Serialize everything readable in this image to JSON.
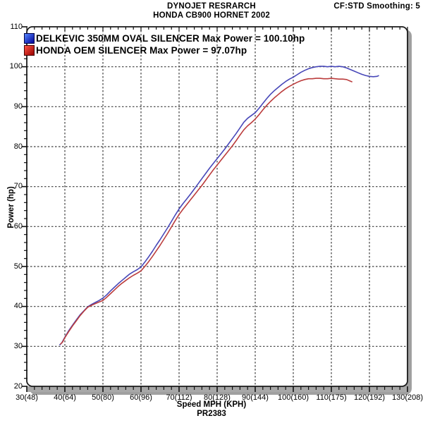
{
  "header": {
    "title_line1": "DYNOJET RESRARCH",
    "title_line2": "HONDA CB900 HORNET 2002",
    "smoothing": "CF:STD Smoothing: 5"
  },
  "legend": {
    "item1": {
      "label": "DELKEVIC 350MM OVAL SILENCER  Max Power = 100.10hp"
    },
    "item2": {
      "label": "HONDA OEM SILENCER Max Power = 97.07hp"
    }
  },
  "footer": {
    "xlabel": "Speed MPH (KPH)",
    "run_id": "PR2383"
  },
  "colors": {
    "blue_line": "#4747b8",
    "red_line": "#bb3c3c",
    "blue_swatch_light": "#5588ff",
    "blue_swatch_dark": "#000099",
    "red_swatch_light": "#ff5544",
    "red_swatch_dark": "#990000",
    "grid": "#3c3c3c",
    "frame": "#1a1a1a",
    "frame_shadow": "#a0a0a0",
    "axis_bar": "#a8a8a8"
  },
  "chart_data": {
    "type": "line",
    "title": "DYNOJET RESRARCH - HONDA CB900 HORNET 2002",
    "xlabel": "Speed MPH (KPH)",
    "ylabel": "Power (hp)",
    "xlim": [
      30,
      130
    ],
    "ylim": [
      20,
      110
    ],
    "grid": "dashed-major-both",
    "legend_position": "top-left-inside",
    "x_ticks": [
      {
        "mph": 30,
        "label": "30(48)"
      },
      {
        "mph": 40,
        "label": "40(64)"
      },
      {
        "mph": 50,
        "label": "50(80)"
      },
      {
        "mph": 60,
        "label": "60(96)"
      },
      {
        "mph": 70,
        "label": "70(112)"
      },
      {
        "mph": 80,
        "label": "80(128)"
      },
      {
        "mph": 90,
        "label": "90(144)"
      },
      {
        "mph": 100,
        "label": "100(160)"
      },
      {
        "mph": 110,
        "label": "110(175)"
      },
      {
        "mph": 120,
        "label": "120(192)"
      },
      {
        "mph": 130,
        "label": "130(208)"
      }
    ],
    "y_ticks": [
      20,
      30,
      40,
      50,
      60,
      70,
      80,
      90,
      100,
      110
    ],
    "minor_tick_step_x_mph": 2,
    "minor_tick_step_y_hp": 2,
    "series": [
      {
        "name": "DELKEVIC 350MM OVAL SILENCER",
        "max_power_hp": 100.1,
        "color": "#4747b8",
        "points": [
          [
            38.6,
            30.3
          ],
          [
            39.2,
            30.9
          ],
          [
            40,
            32.3
          ],
          [
            41,
            33.9
          ],
          [
            42,
            35.3
          ],
          [
            43,
            36.6
          ],
          [
            44,
            37.9
          ],
          [
            45,
            38.9
          ],
          [
            46,
            39.9
          ],
          [
            47,
            40.5
          ],
          [
            48,
            41.0
          ],
          [
            49,
            41.5
          ],
          [
            50,
            42.1
          ],
          [
            51,
            42.9
          ],
          [
            52,
            43.9
          ],
          [
            53,
            44.8
          ],
          [
            54,
            45.7
          ],
          [
            55,
            46.5
          ],
          [
            56,
            47.3
          ],
          [
            57,
            48.1
          ],
          [
            58,
            48.7
          ],
          [
            59,
            49.2
          ],
          [
            60,
            49.9
          ],
          [
            61,
            51.1
          ],
          [
            62,
            52.4
          ],
          [
            63,
            53.8
          ],
          [
            64,
            55.3
          ],
          [
            65,
            56.7
          ],
          [
            66,
            58.2
          ],
          [
            67,
            59.7
          ],
          [
            68,
            61.3
          ],
          [
            69,
            62.9
          ],
          [
            70,
            64.4
          ],
          [
            71,
            65.7
          ],
          [
            72,
            66.9
          ],
          [
            73,
            68.1
          ],
          [
            74,
            69.4
          ],
          [
            75,
            70.7
          ],
          [
            76,
            72.0
          ],
          [
            77,
            73.3
          ],
          [
            78,
            74.6
          ],
          [
            79,
            75.8
          ],
          [
            80,
            77.0
          ],
          [
            81,
            78.2
          ],
          [
            82,
            79.4
          ],
          [
            83,
            80.7
          ],
          [
            84,
            82.0
          ],
          [
            85,
            83.3
          ],
          [
            86,
            84.7
          ],
          [
            87,
            86.1
          ],
          [
            88,
            87.1
          ],
          [
            89,
            87.8
          ],
          [
            90,
            88.5
          ],
          [
            91,
            89.6
          ],
          [
            92,
            90.8
          ],
          [
            93,
            92.0
          ],
          [
            94,
            93.1
          ],
          [
            95,
            94.0
          ],
          [
            96,
            94.8
          ],
          [
            97,
            95.6
          ],
          [
            98,
            96.3
          ],
          [
            99,
            96.9
          ],
          [
            100,
            97.4
          ],
          [
            101,
            98.0
          ],
          [
            102,
            98.6
          ],
          [
            103,
            99.1
          ],
          [
            104,
            99.5
          ],
          [
            105,
            99.8
          ],
          [
            106,
            100.0
          ],
          [
            107,
            100.1
          ],
          [
            108,
            100.1
          ],
          [
            109,
            100.0
          ],
          [
            110,
            100.1
          ],
          [
            111,
            100.0
          ],
          [
            112,
            100.1
          ],
          [
            113,
            100.0
          ],
          [
            114,
            99.7
          ],
          [
            115,
            99.3
          ],
          [
            116,
            98.9
          ],
          [
            117,
            98.5
          ],
          [
            118,
            98.1
          ],
          [
            119,
            97.8
          ],
          [
            120,
            97.6
          ],
          [
            121,
            97.5
          ],
          [
            122,
            97.6
          ],
          [
            122.5,
            97.8
          ]
        ]
      },
      {
        "name": "HONDA OEM SILENCER",
        "max_power_hp": 97.07,
        "color": "#bb3c3c",
        "points": [
          [
            38.8,
            30.5
          ],
          [
            39.4,
            31.1
          ],
          [
            40,
            32.2
          ],
          [
            41,
            33.7
          ],
          [
            42,
            35.1
          ],
          [
            43,
            36.4
          ],
          [
            44,
            37.7
          ],
          [
            45,
            38.8
          ],
          [
            46,
            39.8
          ],
          [
            47,
            40.3
          ],
          [
            48,
            40.7
          ],
          [
            49,
            41.1
          ],
          [
            50,
            41.5
          ],
          [
            51,
            42.3
          ],
          [
            52,
            43.2
          ],
          [
            53,
            44.1
          ],
          [
            54,
            45.0
          ],
          [
            55,
            45.8
          ],
          [
            56,
            46.5
          ],
          [
            57,
            47.2
          ],
          [
            58,
            47.8
          ],
          [
            59,
            48.3
          ],
          [
            60,
            48.9
          ],
          [
            61,
            50.0
          ],
          [
            62,
            51.2
          ],
          [
            63,
            52.5
          ],
          [
            64,
            53.9
          ],
          [
            65,
            55.3
          ],
          [
            66,
            56.8
          ],
          [
            67,
            58.3
          ],
          [
            68,
            59.9
          ],
          [
            69,
            61.5
          ],
          [
            70,
            63.0
          ],
          [
            71,
            64.3
          ],
          [
            72,
            65.5
          ],
          [
            73,
            66.7
          ],
          [
            74,
            67.9
          ],
          [
            75,
            69.1
          ],
          [
            76,
            70.3
          ],
          [
            77,
            71.6
          ],
          [
            78,
            72.9
          ],
          [
            79,
            74.2
          ],
          [
            80,
            75.4
          ],
          [
            81,
            76.6
          ],
          [
            82,
            77.8
          ],
          [
            83,
            79.0
          ],
          [
            84,
            80.2
          ],
          [
            85,
            81.5
          ],
          [
            86,
            82.9
          ],
          [
            87,
            84.2
          ],
          [
            88,
            85.2
          ],
          [
            89,
            86.0
          ],
          [
            90,
            86.9
          ],
          [
            91,
            88.0
          ],
          [
            92,
            89.2
          ],
          [
            93,
            90.3
          ],
          [
            94,
            91.3
          ],
          [
            95,
            92.2
          ],
          [
            96,
            93.0
          ],
          [
            97,
            93.8
          ],
          [
            98,
            94.5
          ],
          [
            99,
            95.1
          ],
          [
            100,
            95.6
          ],
          [
            101,
            96.1
          ],
          [
            102,
            96.5
          ],
          [
            103,
            96.8
          ],
          [
            104,
            97.0
          ],
          [
            105,
            97.0
          ],
          [
            106,
            97.1
          ],
          [
            107,
            97.1
          ],
          [
            108,
            97.0
          ],
          [
            109,
            97.0
          ],
          [
            110,
            97.1
          ],
          [
            111,
            97.0
          ],
          [
            112,
            96.9
          ],
          [
            113,
            96.9
          ],
          [
            114,
            96.8
          ],
          [
            115,
            96.4
          ],
          [
            115.5,
            96.2
          ]
        ]
      }
    ]
  }
}
